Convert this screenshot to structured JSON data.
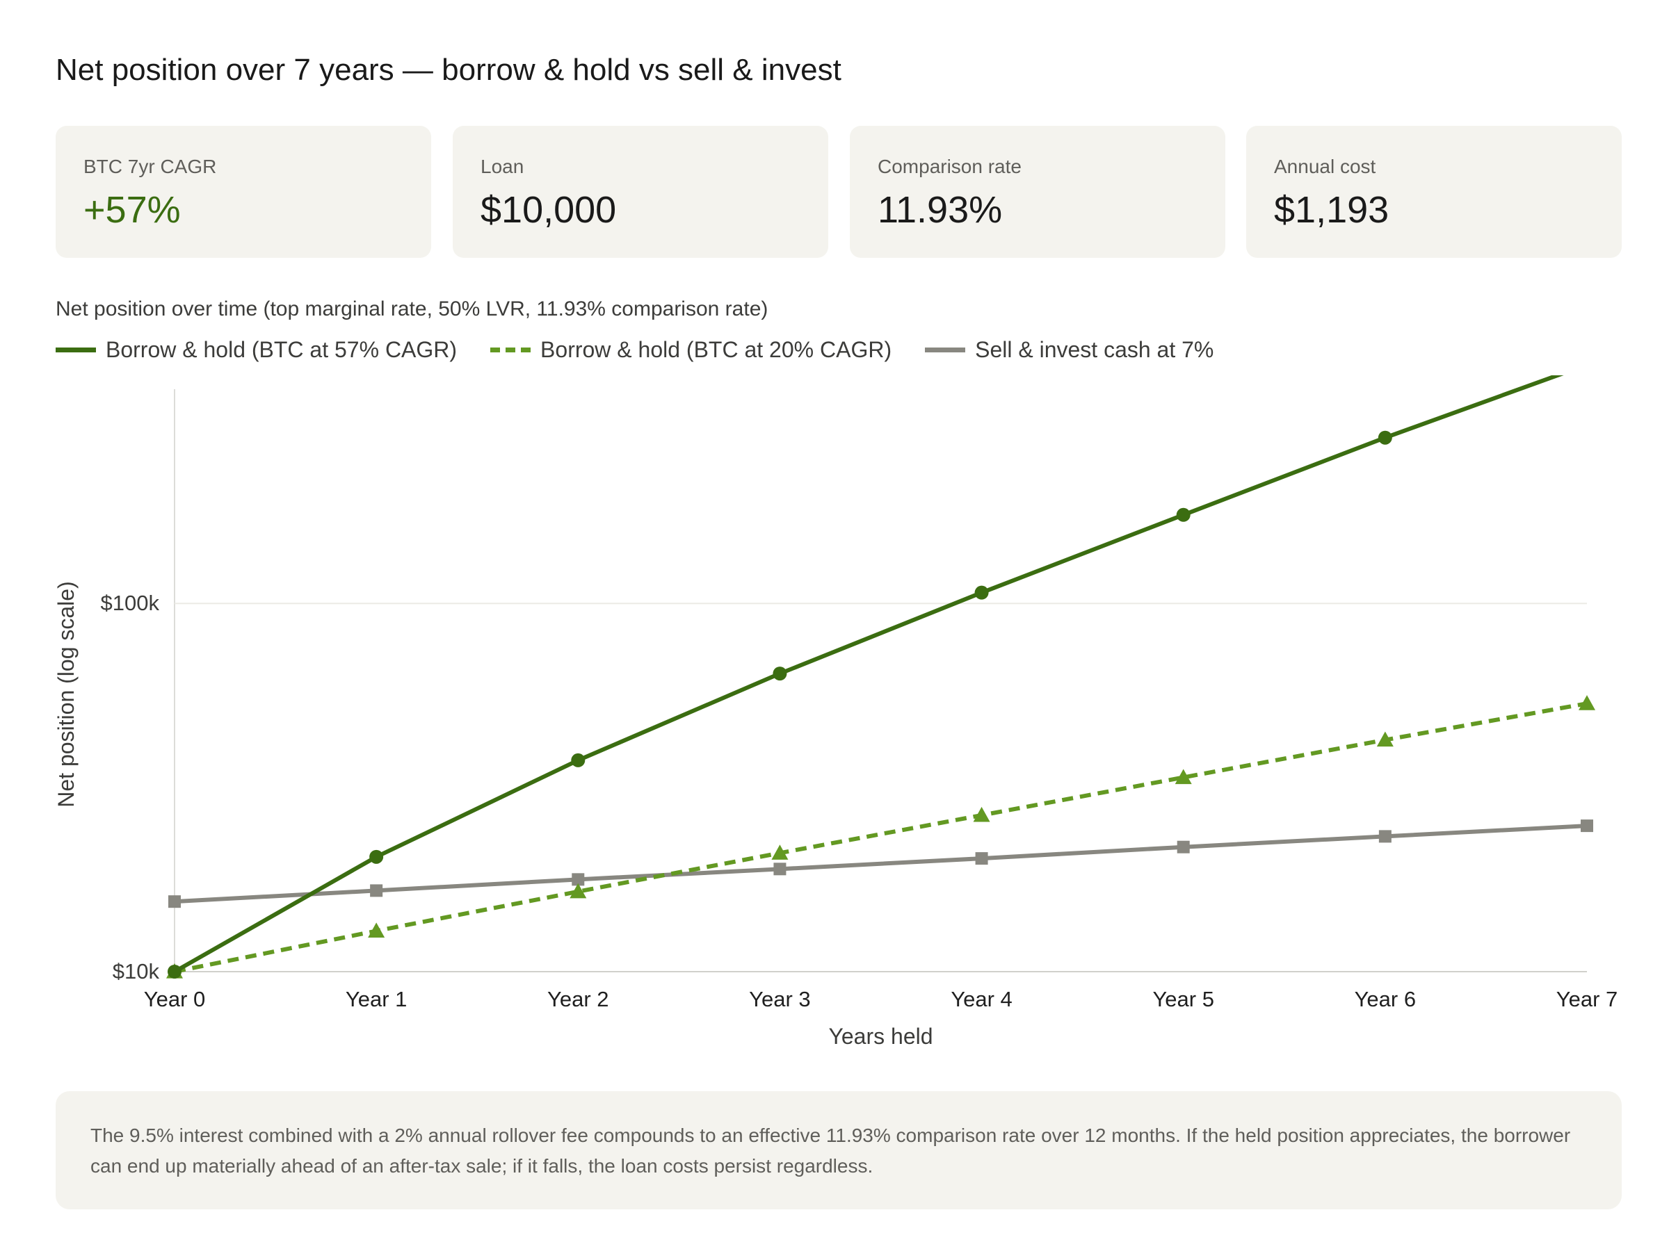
{
  "page": {
    "title": "Net position over 7 years — borrow & hold vs sell & invest"
  },
  "stats": [
    {
      "label": "BTC 7yr CAGR",
      "value": "+57%",
      "positive": true
    },
    {
      "label": "Loan",
      "value": "$10,000",
      "positive": false
    },
    {
      "label": "Comparison rate",
      "value": "11.93%",
      "positive": false
    },
    {
      "label": "Annual cost",
      "value": "$1,193",
      "positive": false
    }
  ],
  "note": {
    "text": "The 9.5% interest combined with a 2% annual rollover fee compounds to an effective 11.93% comparison rate over 12 months. If the held position appreciates, the borrower can end up materially ahead of an after-tax sale; if it falls, the loan costs persist regardless."
  },
  "colors": {
    "dark_green": "#3b6d11",
    "light_green": "#639922",
    "gray": "#888780"
  },
  "chart_data": {
    "type": "line",
    "subtitle": "Net position over time (top marginal rate, 50% LVR, 11.93% comparison rate)",
    "xlabel": "Years held",
    "ylabel": "Net position (log scale)",
    "yscale": "log",
    "ylim": [
      10000,
      350000
    ],
    "yticks": [
      {
        "value": 10000,
        "label": "$10k"
      },
      {
        "value": 100000,
        "label": "$100k"
      }
    ],
    "categories": [
      "Year 0",
      "Year 1",
      "Year 2",
      "Year 3",
      "Year 4",
      "Year 5",
      "Year 6",
      "Year 7"
    ],
    "grid": "horizontal",
    "legend": "top-left",
    "series": [
      {
        "name": "Borrow & hold (BTC at 57% CAGR)",
        "values": [
          10000,
          20500,
          37500,
          64500,
          107000,
          174000,
          282000,
          445000
        ],
        "color": "#3b6d11",
        "style": "solid",
        "marker": "circle"
      },
      {
        "name": "Borrow & hold (BTC at 20% CAGR)",
        "values": [
          10000,
          12900,
          16500,
          21000,
          26600,
          33700,
          42600,
          53500
        ],
        "color": "#639922",
        "style": "dashed",
        "marker": "triangle"
      },
      {
        "name": "Sell & invest cash at 7%",
        "values": [
          15500,
          16600,
          17800,
          19000,
          20300,
          21800,
          23300,
          24900
        ],
        "color": "#888780",
        "style": "solid",
        "marker": "square"
      }
    ]
  }
}
